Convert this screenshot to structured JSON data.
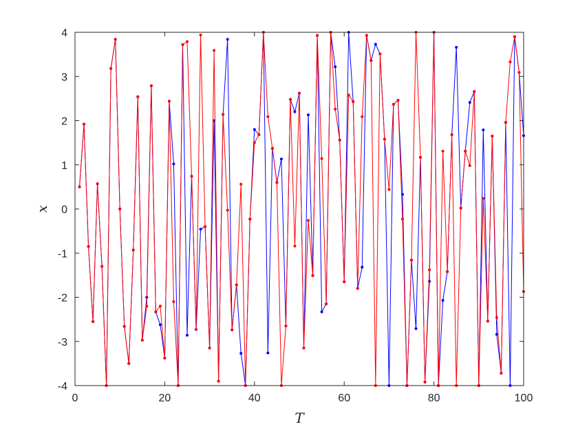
{
  "chart_data": {
    "type": "line",
    "title": "",
    "xlabel": "T",
    "ylabel": "x",
    "xlim": [
      0,
      100
    ],
    "ylim": [
      -4,
      4
    ],
    "xticks": [
      0,
      20,
      40,
      60,
      80,
      100
    ],
    "yticks": [
      -4,
      -3,
      -2,
      -1,
      0,
      1,
      2,
      3,
      4
    ],
    "grid": false,
    "legend": "none",
    "x": [
      1,
      2,
      3,
      4,
      5,
      6,
      7,
      8,
      9,
      10,
      11,
      12,
      13,
      14,
      15,
      16,
      17,
      18,
      19,
      20,
      21,
      22,
      23,
      24,
      25,
      26,
      27,
      28,
      29,
      30,
      31,
      32,
      33,
      34,
      35,
      36,
      37,
      38,
      39,
      40,
      41,
      42,
      43,
      44,
      45,
      46,
      47,
      48,
      49,
      50,
      51,
      52,
      53,
      54,
      55,
      56,
      57,
      58,
      59,
      60,
      61,
      62,
      63,
      64,
      65,
      66,
      67,
      68,
      69,
      70,
      71,
      72,
      73,
      74,
      75,
      76,
      77,
      78,
      79,
      80,
      81,
      82,
      83,
      84,
      85,
      86,
      87,
      88,
      89,
      90,
      91,
      92,
      93,
      94,
      95,
      96,
      97,
      98,
      99,
      100
    ],
    "series": [
      {
        "color": "#0000ff",
        "values": [
          0.5,
          1.92,
          -0.85,
          -2.55,
          0.57,
          -1.3,
          -4,
          3.18,
          3.84,
          0,
          -2.66,
          -3.5,
          -0.93,
          2.54,
          -2.97,
          -2.0,
          2.79,
          -2.33,
          -2.62,
          -3.38,
          2.44,
          1.02,
          -4,
          3.72,
          -2.86,
          0.74,
          -2.73,
          -0.46,
          -0.4,
          -3.15,
          2.0,
          -3.9,
          2.14,
          3.84,
          -2.74,
          -1.72,
          -3.27,
          -4,
          -0.23,
          1.8,
          1.68,
          4,
          -3.26,
          1.37,
          0.6,
          1.13,
          -2.65,
          2.48,
          2.2,
          2.62,
          -3.15,
          2.13,
          -1.51,
          3.93,
          -2.33,
          -2.15,
          4,
          3.22,
          1.56,
          -1.65,
          4,
          2.43,
          -1.8,
          -1.32,
          3.93,
          3.36,
          3.73,
          3.51,
          1.58,
          -4,
          2.37,
          2.46,
          0.33,
          -4,
          -1.16,
          -2.71,
          1.17,
          -3.92,
          -1.64,
          4,
          -4,
          -2.07,
          -1.42,
          1.68,
          3.66,
          0.02,
          1.31,
          2.41,
          2.66,
          -4,
          1.79,
          -2.54,
          1.65,
          -2.84,
          -3.72,
          1.96,
          -4,
          3.9,
          3.09,
          1.66
        ]
      },
      {
        "color": "#ff0000",
        "values": [
          0.5,
          1.92,
          -0.85,
          -2.55,
          0.57,
          -1.3,
          -4,
          3.18,
          3.84,
          0,
          -2.66,
          -3.5,
          -0.93,
          2.54,
          -2.97,
          -2.2,
          2.79,
          -2.33,
          -2.2,
          -3.38,
          2.44,
          -2.1,
          -4,
          3.72,
          3.79,
          0.74,
          -2.73,
          3.94,
          -0.4,
          -3.15,
          3.59,
          -3.9,
          2.14,
          -0.03,
          -2.74,
          -1.72,
          0.56,
          -4,
          -0.23,
          1.5,
          1.68,
          4,
          2.09,
          1.37,
          0.6,
          -4,
          -2.65,
          2.48,
          -0.84,
          2.62,
          -3.15,
          -0.26,
          -1.51,
          3.93,
          1.14,
          -2.15,
          4,
          2.26,
          1.56,
          -1.65,
          2.58,
          2.43,
          -1.8,
          2.09,
          3.93,
          3.36,
          -4,
          3.51,
          1.58,
          0.44,
          2.37,
          2.46,
          -0.23,
          -4,
          -1.16,
          4,
          1.17,
          -3.92,
          -1.38,
          4,
          -4,
          1.31,
          -1.42,
          1.68,
          -4,
          0.02,
          1.31,
          0.98,
          2.66,
          -4,
          0.24,
          -2.54,
          1.65,
          -2.46,
          -3.72,
          1.96,
          3.33,
          3.9,
          3.09,
          -1.87
        ]
      }
    ]
  }
}
